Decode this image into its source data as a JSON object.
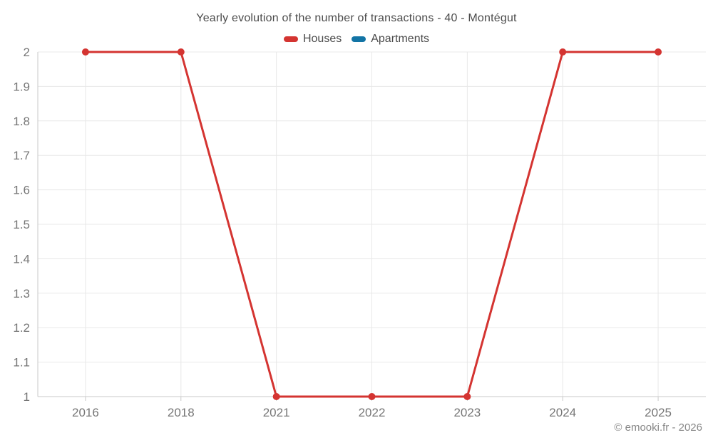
{
  "page": {
    "copyright": "© emooki.fr - 2026"
  },
  "chart_data": {
    "type": "line",
    "title": "Yearly evolution of the number of transactions - 40 - Montégut",
    "categories": [
      "2016",
      "2018",
      "2021",
      "2022",
      "2023",
      "2024",
      "2025"
    ],
    "series": [
      {
        "name": "Houses",
        "color": "#d43431",
        "values": [
          2,
          2,
          1,
          1,
          1,
          2,
          2
        ]
      },
      {
        "name": "Apartments",
        "color": "#1274a5",
        "values": []
      }
    ],
    "xlabel": "",
    "ylabel": "",
    "ylim": [
      1,
      2
    ],
    "yticks": [
      "1",
      "1.1",
      "1.2",
      "1.3",
      "1.4",
      "1.5",
      "1.6",
      "1.7",
      "1.8",
      "1.9",
      "2"
    ],
    "grid": true,
    "legend_position": "top",
    "marker": "circle"
  },
  "colors": {
    "grid": "#e8e8e8",
    "axis": "#c9c9c9",
    "tick_text": "#767676",
    "title_text": "#4b4b4b",
    "legend_text": "#4a4a4a",
    "copyright_text": "#878787"
  }
}
